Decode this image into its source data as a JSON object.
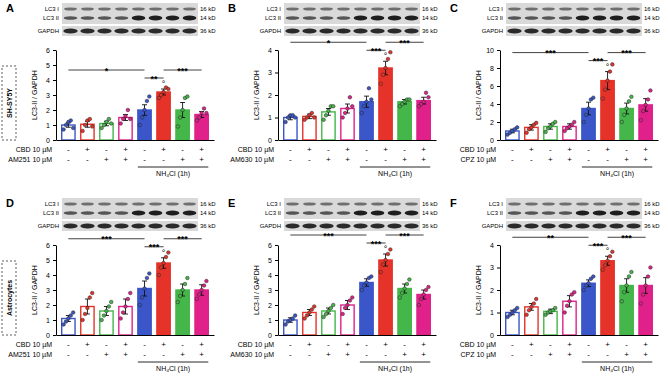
{
  "chart_data": [
    {
      "type": "bar",
      "title": "A",
      "group_label": "SH-SY5Y",
      "ylabel": "LC3-II / GAPDH",
      "categories": [
        null,
        null,
        null,
        null,
        null,
        null,
        null,
        null
      ],
      "values": [
        1.0,
        1.05,
        1.1,
        1.5,
        2.0,
        3.2,
        2.0,
        1.7
      ],
      "errors": [
        0.15,
        0.2,
        0.15,
        0.2,
        0.35,
        0.2,
        0.5,
        0.2
      ],
      "points": [
        [
          0.7,
          1.0,
          1.2,
          1.3,
          0.8
        ],
        [
          0.6,
          1.0,
          1.3,
          1.4,
          0.9
        ],
        [
          0.8,
          1.0,
          1.2,
          1.4,
          1.1
        ],
        [
          1.1,
          1.4,
          1.6,
          2.0,
          1.4
        ],
        [
          1.0,
          1.5,
          2.0,
          2.6,
          2.9
        ],
        [
          2.8,
          3.0,
          3.2,
          3.5,
          3.4
        ],
        [
          0.9,
          1.5,
          2.0,
          2.8,
          2.9
        ],
        [
          1.3,
          1.5,
          1.8,
          2.1,
          1.8
        ]
      ],
      "colors": [
        "#3a56c8",
        "#e5332a",
        "#45b649",
        "#e0218a",
        "#3a56c8",
        "#e5332a",
        "#45b649",
        "#e0218a"
      ],
      "ylim": [
        0,
        6
      ],
      "yticks": [
        0,
        1,
        2,
        3,
        4,
        5,
        6
      ],
      "blot": {
        "labels": [
          "LC3 I",
          "LC3 II",
          "GAPDH"
        ],
        "sizes": [
          "16 kD",
          "14 kD",
          "36 kD"
        ]
      },
      "treatments": [
        {
          "label": "CBD 10 µM",
          "values": [
            "-",
            "+",
            "-",
            "+",
            "-",
            "+",
            "-",
            "+"
          ]
        },
        {
          "label": "AM251 10 µM",
          "values": [
            "-",
            "-",
            "+",
            "+",
            "-",
            "-",
            "+",
            "+"
          ]
        }
      ],
      "bracket": {
        "label": "NH₄Cl (1h)",
        "from": 4,
        "to": 7
      },
      "annotations": [
        {
          "from": 0,
          "to": 4,
          "label": "*"
        },
        {
          "from": 4,
          "to": 5,
          "label": "**"
        },
        {
          "from": 5,
          "to": 7,
          "label": "***"
        },
        {
          "from": 5,
          "to": 5,
          "label": "°"
        }
      ]
    },
    {
      "type": "bar",
      "title": "B",
      "ylabel": "LC3-II / GAPDH",
      "categories": [
        null,
        null,
        null,
        null,
        null,
        null,
        null,
        null
      ],
      "values": [
        1.0,
        1.05,
        1.25,
        1.4,
        1.7,
        3.2,
        1.7,
        1.75
      ],
      "errors": [
        0.1,
        0.1,
        0.15,
        0.2,
        0.25,
        0.3,
        0.1,
        0.15
      ],
      "points": [
        [
          0.8,
          1.0,
          1.1,
          1.1,
          1.0
        ],
        [
          0.9,
          1.0,
          1.1,
          1.2,
          1.0
        ],
        [
          0.9,
          1.1,
          1.3,
          1.5,
          1.5
        ],
        [
          1.0,
          1.2,
          1.4,
          1.9,
          1.5
        ],
        [
          1.2,
          1.5,
          1.7,
          2.3,
          1.8
        ],
        [
          2.5,
          2.9,
          3.2,
          3.6,
          3.9
        ],
        [
          1.5,
          1.6,
          1.7,
          1.8,
          1.8
        ],
        [
          1.5,
          1.6,
          1.7,
          2.1,
          1.9
        ]
      ],
      "colors": [
        "#3a56c8",
        "#e5332a",
        "#45b649",
        "#e0218a",
        "#3a56c8",
        "#e5332a",
        "#45b649",
        "#e0218a"
      ],
      "ylim": [
        0,
        4
      ],
      "yticks": [
        0,
        1,
        2,
        3,
        4
      ],
      "blot": {
        "labels": [
          "LC3 I",
          "LC3 II",
          "GAPDH"
        ],
        "sizes": [
          "16 kD",
          "14 kD",
          "36 kD"
        ]
      },
      "treatments": [
        {
          "label": "CBD 10 µM",
          "values": [
            "-",
            "+",
            "-",
            "+",
            "-",
            "+",
            "-",
            "+"
          ]
        },
        {
          "label": "AM630 10 µM",
          "values": [
            "-",
            "-",
            "+",
            "+",
            "-",
            "-",
            "+",
            "+"
          ]
        }
      ],
      "bracket": {
        "label": "NH₄Cl (1h)",
        "from": 4,
        "to": 7
      },
      "annotations": [
        {
          "from": 0,
          "to": 4,
          "label": "*"
        },
        {
          "from": 4,
          "to": 5,
          "label": "***"
        },
        {
          "from": 5,
          "to": 7,
          "label": "***"
        },
        {
          "from": 5,
          "to": 5,
          "label": "°"
        }
      ]
    },
    {
      "type": "bar",
      "title": "C",
      "ylabel": "LC3-II / GAPDH",
      "categories": [
        null,
        null,
        null,
        null,
        null,
        null,
        null,
        null
      ],
      "values": [
        1.0,
        1.4,
        1.5,
        1.5,
        3.5,
        6.6,
        3.5,
        3.9
      ],
      "errors": [
        0.2,
        0.3,
        0.3,
        0.3,
        0.7,
        1.0,
        0.6,
        0.7
      ],
      "points": [
        [
          0.6,
          0.8,
          1.0,
          1.2,
          1.4
        ],
        [
          0.8,
          1.2,
          1.4,
          1.7,
          1.9
        ],
        [
          0.9,
          1.3,
          1.5,
          1.8,
          2.0
        ],
        [
          1.0,
          1.3,
          1.5,
          1.7,
          2.0
        ],
        [
          2.0,
          2.8,
          3.5,
          4.5,
          4.7
        ],
        [
          4.6,
          5.6,
          6.6,
          7.6,
          8.4
        ],
        [
          2.0,
          2.8,
          3.5,
          4.3,
          4.8
        ],
        [
          2.2,
          3.2,
          3.9,
          4.5,
          5.5
        ]
      ],
      "colors": [
        "#3a56c8",
        "#e5332a",
        "#45b649",
        "#e0218a",
        "#3a56c8",
        "#e5332a",
        "#45b649",
        "#e0218a"
      ],
      "ylim": [
        0,
        10
      ],
      "yticks": [
        0,
        2,
        4,
        6,
        8,
        10
      ],
      "blot": {
        "labels": [
          "LC3 I",
          "LC3 II",
          "GAPDH"
        ],
        "sizes": [
          "16 kD",
          "14 kD",
          "36 kD"
        ]
      },
      "treatments": [
        {
          "label": "CBD 10 µM",
          "values": [
            "-",
            "+",
            "-",
            "+",
            "-",
            "+",
            "-",
            "+"
          ]
        },
        {
          "label": "CPZ 10 µM",
          "values": [
            "-",
            "-",
            "+",
            "+",
            "-",
            "-",
            "+",
            "+"
          ]
        }
      ],
      "bracket": {
        "label": "NH₄Cl (1h)",
        "from": 4,
        "to": 7
      },
      "annotations": [
        {
          "from": 0,
          "to": 4,
          "label": "***"
        },
        {
          "from": 4,
          "to": 5,
          "label": "***"
        },
        {
          "from": 5,
          "to": 7,
          "label": "***"
        },
        {
          "from": 5,
          "to": 5,
          "label": "°"
        }
      ]
    },
    {
      "type": "bar",
      "title": "D",
      "group_label": "Astrocytes",
      "ylabel": "LC3-II / GAPDH",
      "categories": [
        null,
        null,
        null,
        null,
        null,
        null,
        null,
        null
      ],
      "values": [
        1.1,
        1.9,
        1.6,
        1.9,
        3.1,
        4.8,
        3.0,
        3.0
      ],
      "errors": [
        0.2,
        0.5,
        0.3,
        0.5,
        0.5,
        0.35,
        0.4,
        0.35
      ],
      "points": [
        [
          0.7,
          0.9,
          1.1,
          1.3,
          1.5
        ],
        [
          1.0,
          1.4,
          1.8,
          2.5,
          2.8
        ],
        [
          1.0,
          1.3,
          1.6,
          1.9,
          2.2
        ],
        [
          1.1,
          1.5,
          1.9,
          2.4,
          2.8
        ],
        [
          2.0,
          2.5,
          3.1,
          3.8,
          4.1
        ],
        [
          4.0,
          4.5,
          4.8,
          5.2,
          5.5
        ],
        [
          2.2,
          2.6,
          3.0,
          3.4,
          3.8
        ],
        [
          2.4,
          2.7,
          3.0,
          3.3,
          3.6
        ]
      ],
      "colors": [
        "#3a56c8",
        "#e5332a",
        "#45b649",
        "#e0218a",
        "#3a56c8",
        "#e5332a",
        "#45b649",
        "#e0218a"
      ],
      "ylim": [
        0,
        6
      ],
      "yticks": [
        0,
        1,
        2,
        3,
        4,
        5,
        6
      ],
      "blot": {
        "labels": [
          "LC3 I",
          "LC3 II",
          "GAPDH"
        ],
        "sizes": [
          "16 kD",
          "14 kD",
          "36 kD"
        ]
      },
      "treatments": [
        {
          "label": "CBD 10 µM",
          "values": [
            "-",
            "+",
            "-",
            "+",
            "-",
            "+",
            "-",
            "+"
          ]
        },
        {
          "label": "AM251 10 µM",
          "values": [
            "-",
            "-",
            "+",
            "+",
            "-",
            "-",
            "+",
            "+"
          ]
        }
      ],
      "bracket": {
        "label": "NH₄Cl (1h)",
        "from": 4,
        "to": 7
      },
      "annotations": [
        {
          "from": 0,
          "to": 4,
          "label": "***"
        },
        {
          "from": 4,
          "to": 5,
          "label": "***"
        },
        {
          "from": 5,
          "to": 7,
          "label": "***"
        },
        {
          "from": 5,
          "to": 5,
          "label": "°"
        }
      ]
    },
    {
      "type": "bar",
      "title": "E",
      "ylabel": "LC3-II / GAPDH",
      "categories": [
        null,
        null,
        null,
        null,
        null,
        null,
        null,
        null
      ],
      "values": [
        1.0,
        1.5,
        1.6,
        2.0,
        3.5,
        5.0,
        3.1,
        2.7
      ],
      "errors": [
        0.15,
        0.2,
        0.2,
        0.3,
        0.25,
        0.4,
        0.3,
        0.3
      ],
      "points": [
        [
          0.7,
          0.9,
          1.0,
          1.1,
          1.3
        ],
        [
          1.1,
          1.3,
          1.5,
          1.7,
          1.9
        ],
        [
          1.2,
          1.4,
          1.6,
          1.8,
          2.0
        ],
        [
          1.4,
          1.8,
          2.0,
          2.3,
          2.5
        ],
        [
          3.0,
          3.3,
          3.5,
          3.8,
          3.9
        ],
        [
          4.2,
          4.7,
          5.0,
          5.4,
          5.7
        ],
        [
          2.5,
          2.8,
          3.1,
          3.4,
          3.7
        ],
        [
          2.0,
          2.4,
          2.7,
          3.0,
          3.2
        ]
      ],
      "colors": [
        "#3a56c8",
        "#e5332a",
        "#45b649",
        "#e0218a",
        "#3a56c8",
        "#e5332a",
        "#45b649",
        "#e0218a"
      ],
      "ylim": [
        0,
        6
      ],
      "yticks": [
        0,
        1,
        2,
        3,
        4,
        5,
        6
      ],
      "blot": {
        "labels": [
          "LC3 I",
          "LC3 II",
          "GAPDH"
        ],
        "sizes": [
          "16 kD",
          "14 kD",
          "36 kD"
        ]
      },
      "treatments": [
        {
          "label": "CBD 10 µM",
          "values": [
            "-",
            "+",
            "-",
            "+",
            "-",
            "+",
            "-",
            "+"
          ]
        },
        {
          "label": "AM630 10 µM",
          "values": [
            "-",
            "-",
            "+",
            "+",
            "-",
            "-",
            "+",
            "+"
          ]
        }
      ],
      "bracket": {
        "label": "NH₄Cl (1h)",
        "from": 4,
        "to": 7
      },
      "annotations": [
        {
          "from": 0,
          "to": 4,
          "label": "***"
        },
        {
          "from": 4,
          "to": 5,
          "label": "***"
        },
        {
          "from": 5,
          "to": 7,
          "label": "***"
        },
        {
          "from": 5,
          "to": 5,
          "label": "°"
        }
      ]
    },
    {
      "type": "bar",
      "title": "F",
      "ylabel": "LC3-II / GAPDH",
      "categories": [
        null,
        null,
        null,
        null,
        null,
        null,
        null,
        null
      ],
      "values": [
        1.0,
        1.25,
        1.05,
        1.5,
        2.3,
        3.3,
        2.2,
        2.2
      ],
      "errors": [
        0.1,
        0.15,
        0.1,
        0.25,
        0.15,
        0.2,
        0.3,
        0.35
      ],
      "points": [
        [
          0.8,
          0.9,
          1.0,
          1.1,
          1.2
        ],
        [
          0.9,
          1.1,
          1.25,
          1.4,
          1.6
        ],
        [
          0.9,
          1.0,
          1.05,
          1.1,
          1.2
        ],
        [
          1.0,
          1.3,
          1.5,
          1.8,
          1.9
        ],
        [
          2.0,
          2.2,
          2.3,
          2.5,
          2.6
        ],
        [
          2.9,
          3.1,
          3.3,
          3.5,
          3.7
        ],
        [
          1.5,
          1.9,
          2.2,
          2.6,
          2.8
        ],
        [
          1.4,
          1.8,
          2.2,
          2.6,
          3.0
        ]
      ],
      "colors": [
        "#3a56c8",
        "#e5332a",
        "#45b649",
        "#e0218a",
        "#3a56c8",
        "#e5332a",
        "#45b649",
        "#e0218a"
      ],
      "ylim": [
        0,
        4
      ],
      "yticks": [
        0,
        1,
        2,
        3,
        4
      ],
      "blot": {
        "labels": [
          "LC3 I",
          "LC3 II",
          "GAPDH"
        ],
        "sizes": [
          "16 kD",
          "14 kD",
          "36 kD"
        ]
      },
      "treatments": [
        {
          "label": "CBD 10 µM",
          "values": [
            "-",
            "+",
            "-",
            "+",
            "-",
            "+",
            "-",
            "+"
          ]
        },
        {
          "label": "CPZ 10 µM",
          "values": [
            "-",
            "-",
            "+",
            "+",
            "-",
            "-",
            "+",
            "+"
          ]
        }
      ],
      "bracket": {
        "label": "NH₄Cl (1h)",
        "from": 4,
        "to": 7
      },
      "annotations": [
        {
          "from": 0,
          "to": 4,
          "label": "**"
        },
        {
          "from": 4,
          "to": 5,
          "label": "***"
        },
        {
          "from": 5,
          "to": 7,
          "label": "***"
        },
        {
          "from": 5,
          "to": 5,
          "label": "°"
        }
      ]
    }
  ]
}
